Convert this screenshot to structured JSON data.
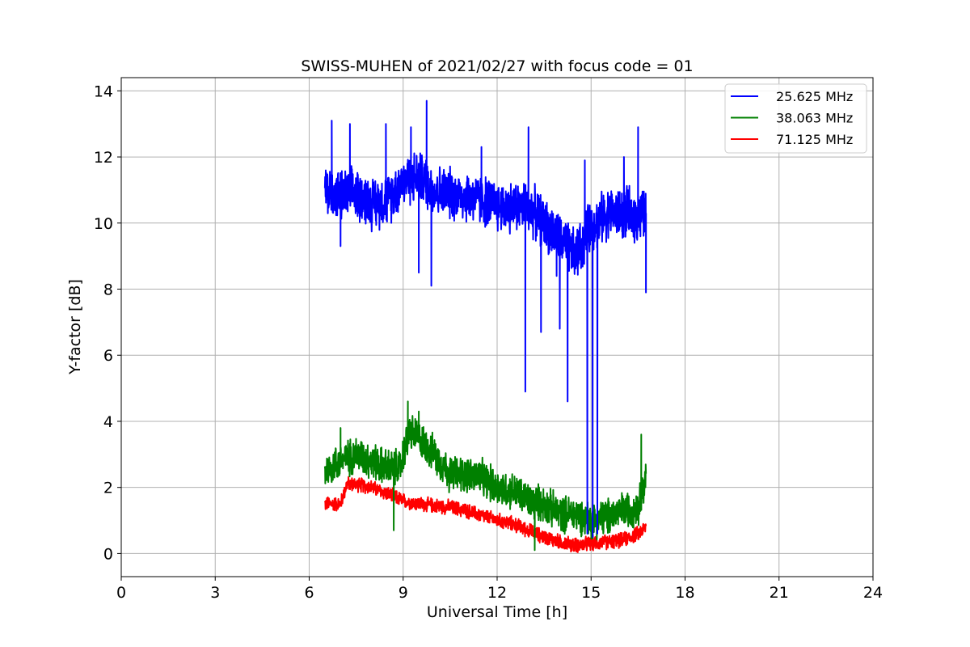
{
  "chart_data": {
    "type": "line",
    "title": "SWISS-MUHEN of 2021/02/27 with focus code = 01",
    "xlabel": "Universal Time [h]",
    "ylabel": "Y-factor [dB]",
    "xlim": [
      0,
      24
    ],
    "ylim": [
      -0.7,
      14.4
    ],
    "xticks": [
      0,
      3,
      6,
      9,
      12,
      15,
      18,
      21,
      24
    ],
    "yticks": [
      0,
      2,
      4,
      6,
      8,
      10,
      12,
      14
    ],
    "grid": true,
    "legend_position": "top-right",
    "series": [
      {
        "name": "25.625 MHz",
        "color": "#0000ff",
        "x": [
          6.5,
          7.0,
          7.5,
          8.0,
          8.5,
          9.0,
          9.5,
          10.0,
          10.5,
          11.0,
          11.5,
          12.0,
          12.5,
          13.0,
          13.5,
          14.0,
          14.5,
          14.8,
          15.0,
          15.2,
          15.5,
          16.0,
          16.5,
          16.75
        ],
        "y": [
          11.0,
          10.8,
          10.9,
          10.6,
          10.7,
          11.3,
          11.4,
          11.0,
          10.9,
          10.8,
          10.7,
          10.5,
          10.5,
          10.5,
          10.0,
          9.5,
          9.0,
          9.5,
          10.0,
          10.0,
          10.3,
          10.3,
          10.2,
          10.3
        ],
        "spread": 0.7,
        "spikes": [
          {
            "x": 6.72,
            "y": 13.1
          },
          {
            "x": 7.0,
            "y": 9.3
          },
          {
            "x": 7.3,
            "y": 13.0
          },
          {
            "x": 8.45,
            "y": 13.0
          },
          {
            "x": 9.25,
            "y": 12.9
          },
          {
            "x": 9.5,
            "y": 8.5
          },
          {
            "x": 9.75,
            "y": 13.7
          },
          {
            "x": 9.9,
            "y": 8.1
          },
          {
            "x": 11.5,
            "y": 12.3
          },
          {
            "x": 12.9,
            "y": 4.9
          },
          {
            "x": 13.0,
            "y": 12.9
          },
          {
            "x": 13.4,
            "y": 6.7
          },
          {
            "x": 13.9,
            "y": 8.4
          },
          {
            "x": 14.0,
            "y": 6.8
          },
          {
            "x": 14.25,
            "y": 4.6
          },
          {
            "x": 14.8,
            "y": 11.9
          },
          {
            "x": 14.88,
            "y": 0.6
          },
          {
            "x": 15.05,
            "y": 0.5
          },
          {
            "x": 15.2,
            "y": 0.6
          },
          {
            "x": 16.05,
            "y": 12.0
          },
          {
            "x": 16.5,
            "y": 12.9
          },
          {
            "x": 16.75,
            "y": 7.9
          }
        ]
      },
      {
        "name": "38.063 MHz",
        "color": "#008000",
        "x": [
          6.5,
          7.0,
          7.5,
          8.0,
          8.5,
          8.9,
          9.2,
          9.5,
          10.0,
          10.5,
          11.0,
          11.5,
          12.0,
          12.5,
          13.0,
          13.5,
          14.0,
          14.5,
          15.0,
          15.5,
          16.0,
          16.5,
          16.75
        ],
        "y": [
          2.5,
          2.8,
          3.0,
          2.8,
          2.6,
          2.6,
          3.7,
          3.5,
          3.0,
          2.4,
          2.4,
          2.3,
          2.0,
          1.9,
          1.6,
          1.5,
          1.2,
          1.2,
          1.0,
          1.1,
          1.3,
          1.4,
          2.3
        ],
        "spread": 0.5,
        "spikes": [
          {
            "x": 7.0,
            "y": 3.8
          },
          {
            "x": 8.7,
            "y": 0.7
          },
          {
            "x": 9.15,
            "y": 4.6
          },
          {
            "x": 9.5,
            "y": 4.3
          },
          {
            "x": 13.2,
            "y": 0.1
          },
          {
            "x": 16.6,
            "y": 3.6
          }
        ]
      },
      {
        "name": "71.125 MHz",
        "color": "#ff0000",
        "x": [
          6.5,
          7.0,
          7.2,
          7.5,
          8.0,
          8.5,
          9.0,
          9.5,
          10.0,
          10.5,
          11.0,
          11.5,
          12.0,
          12.5,
          13.0,
          13.5,
          14.0,
          14.5,
          15.0,
          15.5,
          16.0,
          16.5,
          16.75
        ],
        "y": [
          1.5,
          1.5,
          2.1,
          2.1,
          2.0,
          1.8,
          1.6,
          1.5,
          1.45,
          1.4,
          1.3,
          1.15,
          1.0,
          0.9,
          0.7,
          0.5,
          0.35,
          0.25,
          0.3,
          0.35,
          0.4,
          0.6,
          0.8
        ],
        "spread": 0.2,
        "spikes": []
      }
    ]
  }
}
